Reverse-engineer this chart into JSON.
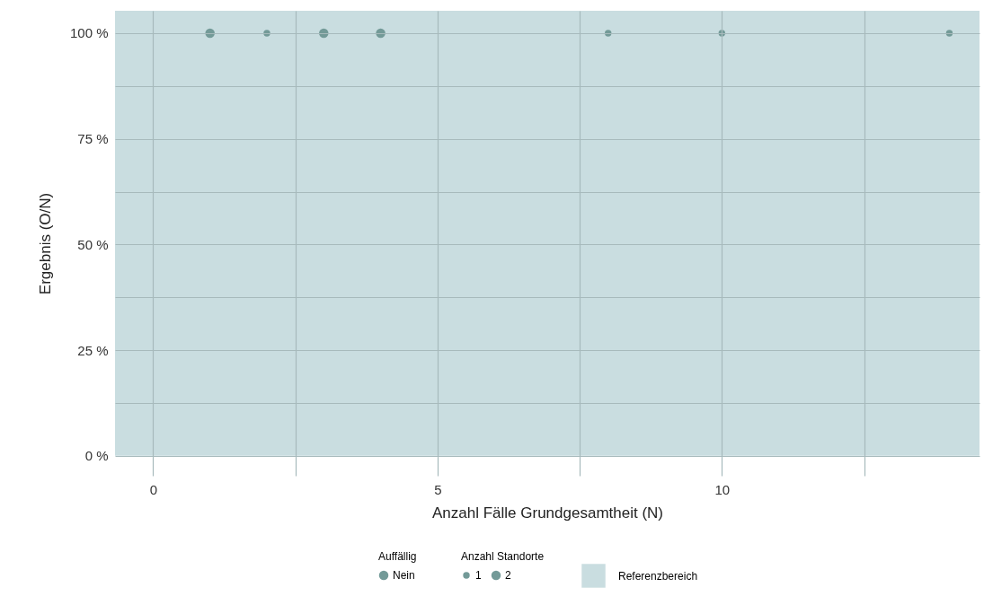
{
  "chart_data": {
    "type": "bubble",
    "xlabel": "Anzahl Fälle Grundgesamtheit (N)",
    "ylabel": "Ergebnis (O/N)",
    "legend_title": "Auffällig",
    "annotations": [
      "Anzahl Standorte"
    ],
    "x": [
      1,
      2,
      3,
      4,
      8,
      10,
      14
    ],
    "series": [
      {
        "name": "Nein",
        "color": "#739a98",
        "values": [
          100,
          100,
          100,
          100,
          100,
          100,
          100
        ],
        "sizes": [
          2,
          1,
          2,
          2,
          1,
          1,
          1
        ]
      }
    ],
    "size_legend": [
      1,
      2
    ],
    "xlim": [
      -0.67,
      14.53
    ],
    "ylim": [
      -4.7,
      105.3
    ],
    "xticks": [
      0,
      {
        "value": 2.5,
        "label": null
      },
      5,
      {
        "value": 7.5,
        "label": null
      },
      10,
      {
        "value": 12.5,
        "label": null
      }
    ],
    "yticks": [
      {
        "value": 0,
        "label": "0 %"
      },
      {
        "value": 12.5,
        "label": null
      },
      {
        "value": 25,
        "label": "25 %"
      },
      {
        "value": 37.5,
        "label": null
      },
      {
        "value": 50,
        "label": "50 %"
      },
      {
        "value": 62.5,
        "label": null
      },
      {
        "value": 75,
        "label": "75 %"
      },
      {
        "value": 87.5,
        "label": null
      },
      {
        "value": 100,
        "label": "100 %"
      }
    ],
    "bands": [
      {
        "axis": "y",
        "from": 0,
        "to": 105.3,
        "label": "Referenzbereich",
        "color": "#c9dde0"
      }
    ],
    "grid": true,
    "legend": "bottom",
    "marker": "circle"
  }
}
